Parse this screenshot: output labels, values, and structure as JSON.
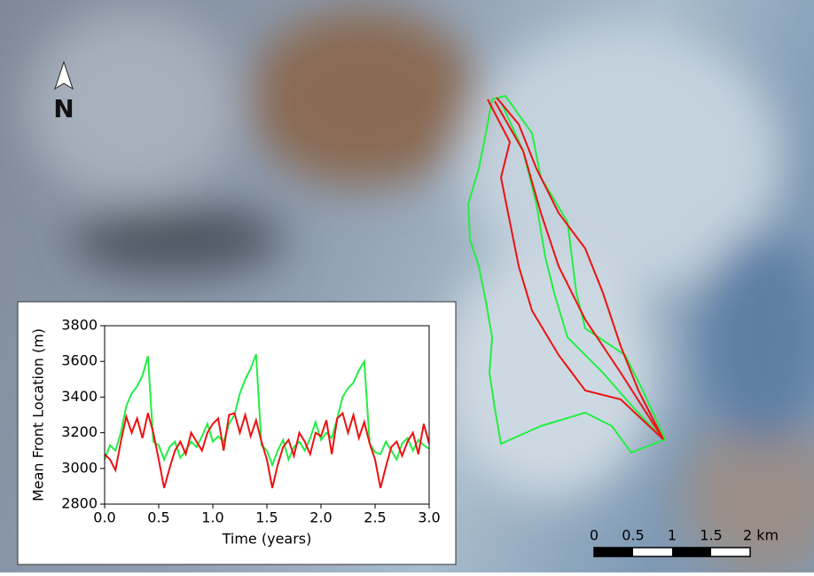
{
  "map": {
    "north": "N",
    "scale_labels": [
      "0",
      "0.5",
      "1",
      "1.5",
      "2 km"
    ]
  },
  "chart_data": {
    "type": "line",
    "xlabel": "Time (years)",
    "ylabel": "Mean Front Location (m)",
    "x": [
      0,
      0.05,
      0.1,
      0.15,
      0.2,
      0.25,
      0.3,
      0.35,
      0.4,
      0.45,
      0.5,
      0.55,
      0.6,
      0.65,
      0.7,
      0.75,
      0.8,
      0.85,
      0.9,
      0.95,
      1,
      1.05,
      1.1,
      1.15,
      1.2,
      1.25,
      1.3,
      1.35,
      1.4,
      1.45,
      1.5,
      1.55,
      1.6,
      1.65,
      1.7,
      1.75,
      1.8,
      1.85,
      1.9,
      1.95,
      2,
      2.05,
      2.1,
      2.15,
      2.2,
      2.25,
      2.3,
      2.35,
      2.4,
      2.45,
      2.5,
      2.55,
      2.6,
      2.65,
      2.7,
      2.75,
      2.8,
      2.85,
      2.9,
      2.95,
      3
    ],
    "series": [
      {
        "color": "#22ee44",
        "values": [
          3050,
          3130,
          3100,
          3200,
          3350,
          3420,
          3460,
          3520,
          3630,
          3150,
          3130,
          3050,
          3120,
          3150,
          3060,
          3100,
          3150,
          3120,
          3180,
          3250,
          3150,
          3180,
          3150,
          3250,
          3300,
          3420,
          3500,
          3560,
          3640,
          3130,
          3100,
          3020,
          3100,
          3160,
          3050,
          3120,
          3150,
          3100,
          3170,
          3260,
          3160,
          3200,
          3170,
          3280,
          3400,
          3450,
          3480,
          3550,
          3600,
          3140,
          3090,
          3080,
          3150,
          3100,
          3050,
          3140,
          3170,
          3100,
          3160,
          3130,
          3110
        ]
      },
      {
        "color": "#ee1111",
        "values": [
          3080,
          3050,
          2990,
          3150,
          3290,
          3200,
          3280,
          3170,
          3310,
          3200,
          3050,
          2890,
          3000,
          3100,
          3150,
          3080,
          3200,
          3150,
          3100,
          3200,
          3250,
          3280,
          3100,
          3300,
          3310,
          3200,
          3300,
          3180,
          3270,
          3150,
          3050,
          2890,
          3020,
          3120,
          3160,
          3070,
          3200,
          3150,
          3080,
          3200,
          3180,
          3270,
          3080,
          3280,
          3310,
          3200,
          3300,
          3170,
          3260,
          3140,
          3050,
          2890,
          3010,
          3120,
          3150,
          3070,
          3150,
          3200,
          3080,
          3250,
          3140
        ]
      }
    ],
    "xlim": [
      0,
      3
    ],
    "xticks": [
      {
        "value": 0,
        "label": "0.0"
      },
      {
        "value": 0.5,
        "label": "0.5"
      },
      {
        "value": 1,
        "label": "1.0"
      },
      {
        "value": 1.5,
        "label": "1.5"
      },
      {
        "value": 2,
        "label": "2.0"
      },
      {
        "value": 2.5,
        "label": "2.5"
      },
      {
        "value": 3,
        "label": "3.0"
      }
    ],
    "ylim": [
      2800,
      3800
    ],
    "yticks": [
      2800,
      3000,
      3200,
      3400,
      3600,
      3800
    ]
  }
}
